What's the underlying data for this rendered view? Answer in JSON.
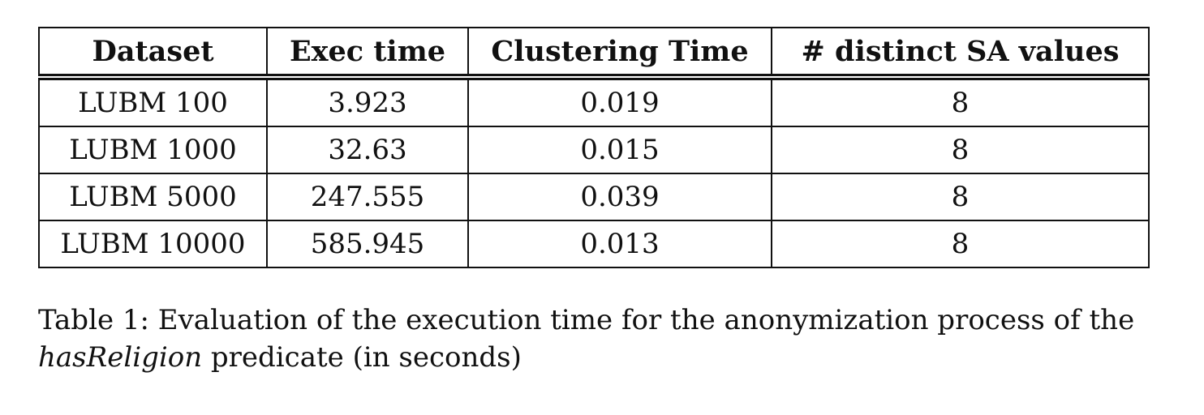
{
  "table": {
    "headers": [
      "Dataset",
      "Exec time",
      "Clustering Time",
      "# distinct SA values"
    ],
    "rows": [
      [
        "LUBM 100",
        "3.923",
        "0.019",
        "8"
      ],
      [
        "LUBM 1000",
        "32.63",
        "0.015",
        "8"
      ],
      [
        "LUBM 5000",
        "247.555",
        "0.039",
        "8"
      ],
      [
        "LUBM 10000",
        "585.945",
        "0.013",
        "8"
      ]
    ]
  },
  "caption": {
    "line1": "Table 1: Evaluation of the execution time for the anonymization process of the",
    "predicate": "hasReligion",
    "line2_rest": " predicate (in seconds)"
  }
}
